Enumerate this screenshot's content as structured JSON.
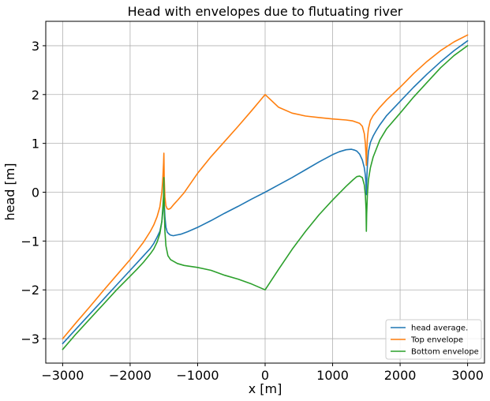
{
  "chart_data": {
    "type": "line",
    "title": "Head with envelopes due to flutuating river",
    "xlabel": "x [m]",
    "ylabel": "head [m]",
    "xlim": [
      -3250,
      3250
    ],
    "ylim": [
      -3.5,
      3.5
    ],
    "xticks": [
      -3000,
      -2000,
      -1000,
      0,
      1000,
      2000,
      3000
    ],
    "xtick_labels": [
      "−3000",
      "−2000",
      "−1000",
      "0",
      "1000",
      "2000",
      "3000"
    ],
    "yticks": [
      -3,
      -2,
      -1,
      0,
      1,
      2,
      3
    ],
    "ytick_labels": [
      "−3",
      "−2",
      "−1",
      "0",
      "1",
      "2",
      "3"
    ],
    "grid": true,
    "legend_position": "lower-right",
    "series": [
      {
        "name": "head average.",
        "color": "#1f77b4",
        "x": [
          -3000,
          -2800,
          -2600,
          -2400,
          -2200,
          -2000,
          -1900,
          -1800,
          -1700,
          -1650,
          -1600,
          -1560,
          -1530,
          -1515,
          -1505,
          -1500,
          -1495,
          -1485,
          -1470,
          -1450,
          -1420,
          -1400,
          -1360,
          -1320,
          -1250,
          -1150,
          -1000,
          -800,
          -600,
          -400,
          -200,
          0,
          200,
          400,
          600,
          800,
          1000,
          1100,
          1200,
          1280,
          1330,
          1360,
          1400,
          1440,
          1470,
          1485,
          1495,
          1500,
          1505,
          1515,
          1530,
          1560,
          1600,
          1650,
          1700,
          1800,
          2000,
          2200,
          2400,
          2600,
          2800,
          3000
        ],
        "y": [
          -3.1,
          -2.8,
          -2.5,
          -2.2,
          -1.9,
          -1.6,
          -1.45,
          -1.3,
          -1.15,
          -1.05,
          -0.92,
          -0.8,
          -0.6,
          -0.4,
          -0.15,
          0.25,
          -0.2,
          -0.5,
          -0.72,
          -0.82,
          -0.86,
          -0.88,
          -0.89,
          -0.88,
          -0.86,
          -0.81,
          -0.72,
          -0.58,
          -0.43,
          -0.29,
          -0.14,
          0.0,
          0.15,
          0.3,
          0.46,
          0.62,
          0.77,
          0.83,
          0.87,
          0.88,
          0.86,
          0.84,
          0.78,
          0.66,
          0.5,
          0.35,
          0.15,
          -0.05,
          0.2,
          0.55,
          0.83,
          1.02,
          1.15,
          1.27,
          1.38,
          1.57,
          1.86,
          2.15,
          2.42,
          2.67,
          2.9,
          3.1
        ]
      },
      {
        "name": "Top envelope",
        "color": "#ff7f0e",
        "x": [
          -3000,
          -2800,
          -2600,
          -2400,
          -2200,
          -2000,
          -1900,
          -1800,
          -1700,
          -1650,
          -1600,
          -1560,
          -1530,
          -1515,
          -1505,
          -1500,
          -1495,
          -1485,
          -1470,
          -1450,
          -1430,
          -1400,
          -1360,
          -1300,
          -1200,
          -1000,
          -800,
          -600,
          -400,
          -200,
          0,
          200,
          400,
          600,
          800,
          1000,
          1200,
          1300,
          1400,
          1440,
          1470,
          1485,
          1495,
          1500,
          1505,
          1515,
          1530,
          1560,
          1600,
          1700,
          1800,
          2000,
          2200,
          2400,
          2600,
          2800,
          3000
        ],
        "y": [
          -3.0,
          -2.67,
          -2.35,
          -2.02,
          -1.7,
          -1.38,
          -1.2,
          -1.02,
          -0.8,
          -0.67,
          -0.5,
          -0.3,
          0.0,
          0.3,
          0.6,
          0.8,
          0.3,
          -0.1,
          -0.28,
          -0.34,
          -0.35,
          -0.33,
          -0.26,
          -0.17,
          -0.01,
          0.39,
          0.73,
          1.04,
          1.35,
          1.67,
          2.0,
          1.74,
          1.62,
          1.56,
          1.53,
          1.5,
          1.48,
          1.46,
          1.41,
          1.35,
          1.2,
          1.0,
          0.75,
          0.55,
          0.8,
          1.1,
          1.3,
          1.47,
          1.57,
          1.74,
          1.89,
          2.15,
          2.43,
          2.68,
          2.9,
          3.08,
          3.22
        ]
      },
      {
        "name": "Bottom envelope",
        "color": "#2ca02c",
        "x": [
          -3000,
          -2800,
          -2600,
          -2400,
          -2200,
          -2000,
          -1900,
          -1800,
          -1700,
          -1650,
          -1600,
          -1560,
          -1530,
          -1515,
          -1505,
          -1500,
          -1495,
          -1485,
          -1470,
          -1440,
          -1400,
          -1300,
          -1200,
          -1000,
          -800,
          -600,
          -400,
          -200,
          0,
          200,
          400,
          600,
          800,
          1000,
          1100,
          1200,
          1300,
          1360,
          1400,
          1440,
          1470,
          1485,
          1495,
          1500,
          1505,
          1515,
          1530,
          1560,
          1600,
          1700,
          1800,
          2000,
          2200,
          2400,
          2600,
          2800,
          3000
        ],
        "y": [
          -3.22,
          -2.9,
          -2.6,
          -2.3,
          -2.0,
          -1.72,
          -1.58,
          -1.43,
          -1.26,
          -1.16,
          -1.02,
          -0.85,
          -0.6,
          -0.3,
          -0.05,
          0.3,
          -0.3,
          -0.8,
          -1.1,
          -1.3,
          -1.38,
          -1.46,
          -1.5,
          -1.54,
          -1.6,
          -1.7,
          -1.78,
          -1.88,
          -2.0,
          -1.58,
          -1.17,
          -0.8,
          -0.46,
          -0.16,
          -0.02,
          0.12,
          0.25,
          0.32,
          0.33,
          0.3,
          0.15,
          -0.05,
          -0.35,
          -0.8,
          -0.45,
          -0.05,
          0.25,
          0.5,
          0.72,
          1.07,
          1.3,
          1.62,
          1.95,
          2.25,
          2.55,
          2.8,
          3.0
        ]
      }
    ]
  }
}
